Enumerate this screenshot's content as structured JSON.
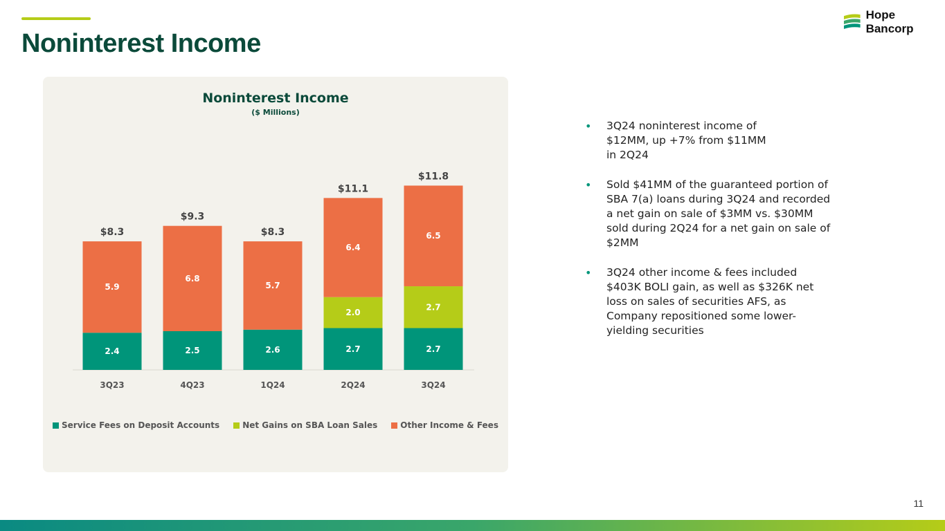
{
  "header": {
    "title": "Noninterest Income",
    "logo_text": "Hope Bancorp"
  },
  "bullets": [
    "3Q24 noninterest income of $12MM, up +7% from $11MM in 2Q24",
    "Sold $41MM of the guaranteed portion of SBA 7(a) loans during 3Q24 and recorded a net gain on sale of $3MM vs. $30MM sold during 2Q24 for a net gain on sale of $2MM",
    "3Q24 other income & fees included $403K BOLI gain, as well as $326K net loss on sales of securities AFS, as Company repositioned some lower-yielding securities"
  ],
  "page_number": "11",
  "chart_data": {
    "type": "bar",
    "stacked": true,
    "title": "Noninterest Income",
    "subtitle": "($ Millions)",
    "categories": [
      "3Q23",
      "4Q23",
      "1Q24",
      "2Q24",
      "3Q24"
    ],
    "series": [
      {
        "name": "Service Fees on Deposit Accounts",
        "color": "#00957a",
        "values": [
          2.4,
          2.5,
          2.6,
          2.7,
          2.7
        ],
        "labels": [
          "2.4",
          "2.5",
          "2.6",
          "2.7",
          "2.7"
        ]
      },
      {
        "name": "Net Gains on SBA Loan Sales",
        "color": "#b5cc18",
        "values": [
          0,
          0,
          0,
          2.0,
          2.7
        ],
        "labels": [
          "",
          "",
          "",
          "2.0",
          "2.7"
        ]
      },
      {
        "name": "Other Income & Fees",
        "color": "#ec6f45",
        "values": [
          5.9,
          6.8,
          5.7,
          6.4,
          6.5
        ],
        "labels": [
          "5.9",
          "6.8",
          "5.7",
          "6.4",
          "6.5"
        ]
      }
    ],
    "totals": [
      "$8.3",
      "$9.3",
      "$8.3",
      "$11.1",
      "$11.8"
    ],
    "legend_position": "bottom",
    "grid": false
  }
}
